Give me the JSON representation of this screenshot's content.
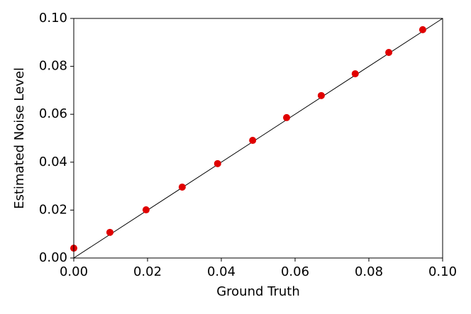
{
  "chart_data": {
    "type": "scatter",
    "xlabel": "Ground Truth",
    "ylabel": "Estimated Noise Level",
    "series": [
      {
        "color": "#e00000",
        "x": [
          0,
          0.0098,
          0.0196,
          0.0294,
          0.039,
          0.0485,
          0.0577,
          0.0671,
          0.0763,
          0.0854,
          0.0946
        ],
        "values": [
          0.0041,
          0.0107,
          0.0201,
          0.0296,
          0.0394,
          0.0491,
          0.0586,
          0.0678,
          0.0769,
          0.0858,
          0.0953
        ]
      }
    ],
    "xlim": [
      0,
      0.1
    ],
    "ylim": [
      0,
      0.1
    ],
    "xticks": [
      {
        "value": 0,
        "label": "0.00"
      },
      {
        "value": 0.02,
        "label": "0.02"
      },
      {
        "value": 0.04,
        "label": "0.04"
      },
      {
        "value": 0.06,
        "label": "0.06"
      },
      {
        "value": 0.08,
        "label": "0.08"
      },
      {
        "value": 0.1,
        "label": "0.10"
      }
    ],
    "yticks": [
      {
        "value": 0,
        "label": "0.00"
      },
      {
        "value": 0.02,
        "label": "0.02"
      },
      {
        "value": 0.04,
        "label": "0.04"
      },
      {
        "value": 0.06,
        "label": "0.06"
      },
      {
        "value": 0.08,
        "label": "0.08"
      },
      {
        "value": 0.1,
        "label": "0.10"
      }
    ],
    "grid": false
  }
}
